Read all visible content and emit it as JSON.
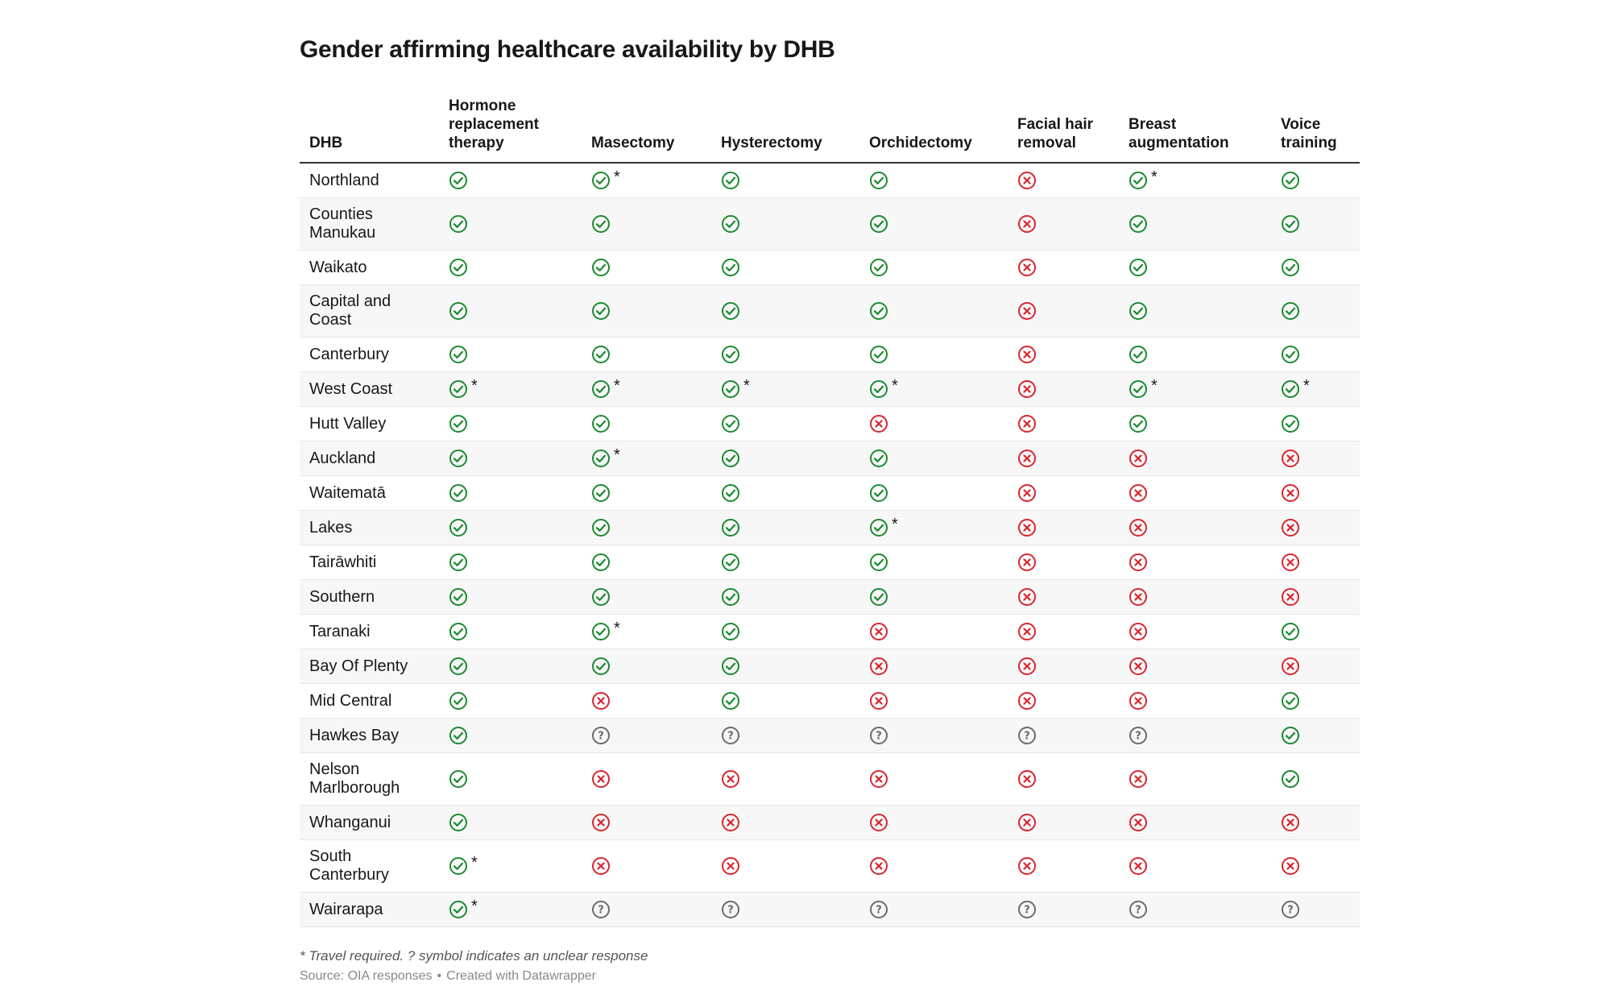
{
  "title": "Gender affirming healthcare availability by DHB",
  "colors": {
    "yes": "#1a8a2e",
    "no": "#d7262f",
    "unclear": "#6b6b6b"
  },
  "icons": {
    "yes": "check-circle-icon",
    "no": "x-circle-icon",
    "unclear": "question-circle-icon"
  },
  "chart_data": {
    "type": "table",
    "columns": [
      "DHB",
      "Hormone replacement therapy",
      "Masectomy",
      "Hysterectomy",
      "Orchidectomy",
      "Facial hair removal",
      "Breast augmentation",
      "Voice training"
    ],
    "rows": [
      {
        "dhb": "Northland",
        "values": [
          "yes",
          "yes*",
          "yes",
          "yes",
          "no",
          "yes*",
          "yes"
        ]
      },
      {
        "dhb": "Counties Manukau",
        "values": [
          "yes",
          "yes",
          "yes",
          "yes",
          "no",
          "yes",
          "yes"
        ]
      },
      {
        "dhb": "Waikato",
        "values": [
          "yes",
          "yes",
          "yes",
          "yes",
          "no",
          "yes",
          "yes"
        ]
      },
      {
        "dhb": "Capital and Coast",
        "values": [
          "yes",
          "yes",
          "yes",
          "yes",
          "no",
          "yes",
          "yes"
        ]
      },
      {
        "dhb": "Canterbury",
        "values": [
          "yes",
          "yes",
          "yes",
          "yes",
          "no",
          "yes",
          "yes"
        ]
      },
      {
        "dhb": "West Coast",
        "values": [
          "yes*",
          "yes*",
          "yes*",
          "yes*",
          "no",
          "yes*",
          "yes*"
        ]
      },
      {
        "dhb": "Hutt Valley",
        "values": [
          "yes",
          "yes",
          "yes",
          "no",
          "no",
          "yes",
          "yes"
        ]
      },
      {
        "dhb": "Auckland",
        "values": [
          "yes",
          "yes*",
          "yes",
          "yes",
          "no",
          "no",
          "no"
        ]
      },
      {
        "dhb": "Waitematā",
        "values": [
          "yes",
          "yes",
          "yes",
          "yes",
          "no",
          "no",
          "no"
        ]
      },
      {
        "dhb": "Lakes",
        "values": [
          "yes",
          "yes",
          "yes",
          "yes*",
          "no",
          "no",
          "no"
        ]
      },
      {
        "dhb": "Tairāwhiti",
        "values": [
          "yes",
          "yes",
          "yes",
          "yes",
          "no",
          "no",
          "no"
        ]
      },
      {
        "dhb": "Southern",
        "values": [
          "yes",
          "yes",
          "yes",
          "yes",
          "no",
          "no",
          "no"
        ]
      },
      {
        "dhb": "Taranaki",
        "values": [
          "yes",
          "yes*",
          "yes",
          "no",
          "no",
          "no",
          "yes"
        ]
      },
      {
        "dhb": "Bay Of Plenty",
        "values": [
          "yes",
          "yes",
          "yes",
          "no",
          "no",
          "no",
          "no"
        ]
      },
      {
        "dhb": "Mid Central",
        "values": [
          "yes",
          "no",
          "yes",
          "no",
          "no",
          "no",
          "yes"
        ]
      },
      {
        "dhb": "Hawkes Bay",
        "values": [
          "yes",
          "unclear",
          "unclear",
          "unclear",
          "unclear",
          "unclear",
          "yes"
        ]
      },
      {
        "dhb": "Nelson Marlborough",
        "values": [
          "yes",
          "no",
          "no",
          "no",
          "no",
          "no",
          "yes"
        ]
      },
      {
        "dhb": "Whanganui",
        "values": [
          "yes",
          "no",
          "no",
          "no",
          "no",
          "no",
          "no"
        ]
      },
      {
        "dhb": "South Canterbury",
        "values": [
          "yes*",
          "no",
          "no",
          "no",
          "no",
          "no",
          "no"
        ]
      },
      {
        "dhb": "Wairarapa",
        "values": [
          "yes*",
          "unclear",
          "unclear",
          "unclear",
          "unclear",
          "unclear",
          "unclear"
        ]
      }
    ]
  },
  "notes": "* Travel required. ? symbol indicates an unclear response",
  "source": "Source: OIA responses",
  "separator": "•",
  "credit": "Created with Datawrapper"
}
